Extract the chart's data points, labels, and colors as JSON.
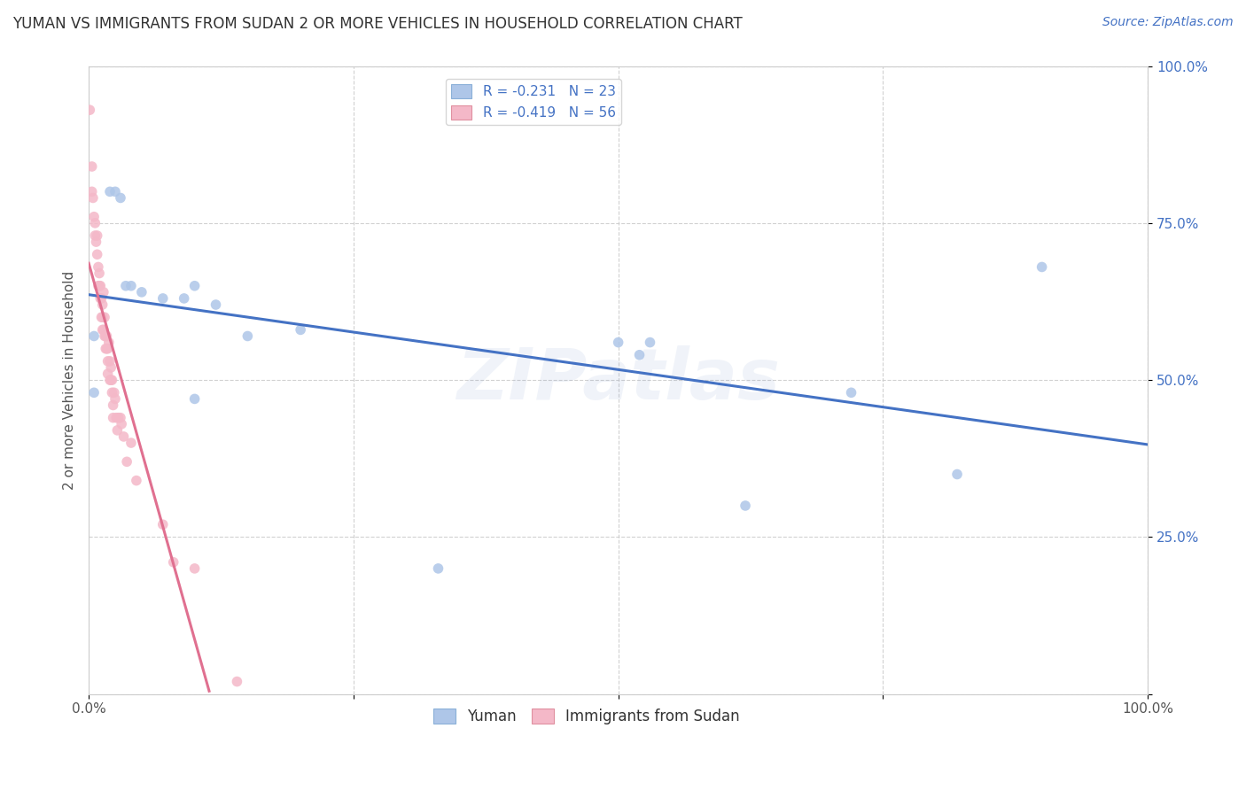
{
  "title": "YUMAN VS IMMIGRANTS FROM SUDAN 2 OR MORE VEHICLES IN HOUSEHOLD CORRELATION CHART",
  "source_text": "Source: ZipAtlas.com",
  "ylabel": "2 or more Vehicles in Household",
  "legend_entries": [
    {
      "label": "Yuman",
      "R": -0.231,
      "N": 23,
      "color": "#aec6e8"
    },
    {
      "label": "Immigrants from Sudan",
      "R": -0.419,
      "N": 56,
      "color": "#f4b8c1"
    }
  ],
  "yuman_x": [
    0.005,
    0.02,
    0.025,
    0.03,
    0.035,
    0.04,
    0.05,
    0.07,
    0.09,
    0.1,
    0.1,
    0.12,
    0.15,
    0.2,
    0.33,
    0.5,
    0.52,
    0.53,
    0.62,
    0.72,
    0.82,
    0.9,
    0.005
  ],
  "yuman_y": [
    0.57,
    0.8,
    0.8,
    0.79,
    0.65,
    0.65,
    0.64,
    0.63,
    0.63,
    0.47,
    0.65,
    0.62,
    0.57,
    0.58,
    0.2,
    0.56,
    0.54,
    0.56,
    0.3,
    0.48,
    0.35,
    0.68,
    0.48
  ],
  "sudan_x": [
    0.001,
    0.003,
    0.003,
    0.004,
    0.005,
    0.006,
    0.006,
    0.007,
    0.008,
    0.008,
    0.009,
    0.009,
    0.01,
    0.01,
    0.011,
    0.011,
    0.012,
    0.012,
    0.013,
    0.013,
    0.013,
    0.014,
    0.014,
    0.015,
    0.015,
    0.016,
    0.016,
    0.017,
    0.017,
    0.018,
    0.018,
    0.018,
    0.019,
    0.02,
    0.02,
    0.021,
    0.021,
    0.022,
    0.022,
    0.023,
    0.023,
    0.024,
    0.025,
    0.026,
    0.027,
    0.028,
    0.03,
    0.031,
    0.033,
    0.036,
    0.04,
    0.045,
    0.07,
    0.08,
    0.1,
    0.14
  ],
  "sudan_y": [
    0.93,
    0.84,
    0.8,
    0.79,
    0.76,
    0.75,
    0.73,
    0.72,
    0.73,
    0.7,
    0.68,
    0.65,
    0.67,
    0.65,
    0.65,
    0.63,
    0.63,
    0.6,
    0.62,
    0.6,
    0.58,
    0.64,
    0.58,
    0.6,
    0.57,
    0.57,
    0.55,
    0.57,
    0.55,
    0.53,
    0.55,
    0.51,
    0.56,
    0.53,
    0.5,
    0.52,
    0.5,
    0.5,
    0.48,
    0.46,
    0.44,
    0.48,
    0.47,
    0.44,
    0.42,
    0.44,
    0.44,
    0.43,
    0.41,
    0.37,
    0.4,
    0.34,
    0.27,
    0.21,
    0.2,
    0.02
  ],
  "xlim": [
    0.0,
    1.0
  ],
  "ylim": [
    0.0,
    1.0
  ],
  "yuman_line_color": "#4472c4",
  "sudan_line_color": "#e07090",
  "sudan_line_dashed_color": "#d0b0b8",
  "watermark_text": "ZIPatlas",
  "grid_color": "#cccccc",
  "background_color": "#ffffff",
  "point_size": 70,
  "yuman_point_color": "#aec6e8",
  "sudan_point_color": "#f4b8c8",
  "title_fontsize": 12,
  "source_fontsize": 10,
  "tick_fontsize": 11,
  "ylabel_fontsize": 11
}
